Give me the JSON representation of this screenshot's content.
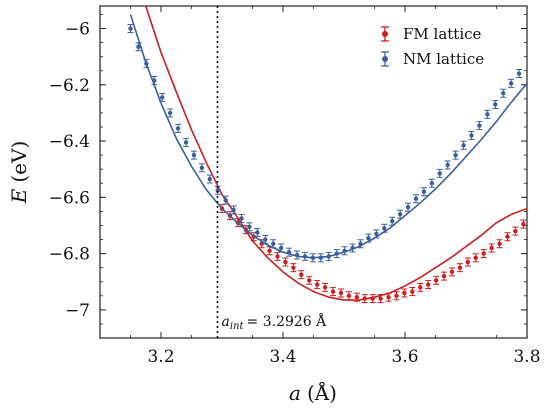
{
  "chart_data": {
    "type": "line",
    "xlabel_var": "a",
    "xlabel_unit": "(Å)",
    "ylabel_var": "E",
    "ylabel_unit": "(eV)",
    "xlim": [
      3.1,
      3.8
    ],
    "ylim": [
      -7.1,
      -5.92
    ],
    "x_ticks": [
      3.2,
      3.4,
      3.6,
      3.8
    ],
    "x_tick_labels": [
      "3.2",
      "3.4",
      "3.6",
      "3.8"
    ],
    "y_ticks": [
      -6.0,
      -6.2,
      -6.4,
      -6.6,
      -6.8,
      -7.0
    ],
    "y_tick_labels": [
      "−6",
      "−6.2",
      "−6.4",
      "−6.6",
      "−6.8",
      "−7"
    ],
    "grid": false,
    "legend_position": "top-right",
    "vline": {
      "x": 3.2926,
      "style": "dotted",
      "annotation_var": "a",
      "annotation_sub": "int",
      "annotation_value": "= 3.2926 Å"
    },
    "series": [
      {
        "name": "FM lattice",
        "color": "#cc1f1f",
        "fit_points": [
          [
            3.175,
            -5.92
          ],
          [
            3.2,
            -6.085
          ],
          [
            3.225,
            -6.225
          ],
          [
            3.25,
            -6.36
          ],
          [
            3.275,
            -6.48
          ],
          [
            3.3,
            -6.59
          ],
          [
            3.325,
            -6.67
          ],
          [
            3.35,
            -6.755
          ],
          [
            3.375,
            -6.815
          ],
          [
            3.4,
            -6.865
          ],
          [
            3.425,
            -6.905
          ],
          [
            3.45,
            -6.935
          ],
          [
            3.475,
            -6.955
          ],
          [
            3.5,
            -6.965
          ],
          [
            3.525,
            -6.965
          ],
          [
            3.55,
            -6.955
          ],
          [
            3.575,
            -6.94
          ],
          [
            3.6,
            -6.915
          ],
          [
            3.625,
            -6.885
          ],
          [
            3.65,
            -6.85
          ],
          [
            3.675,
            -6.815
          ],
          [
            3.7,
            -6.775
          ],
          [
            3.725,
            -6.735
          ],
          [
            3.75,
            -6.69
          ],
          [
            3.775,
            -6.66
          ],
          [
            3.8,
            -6.64
          ]
        ],
        "points": [
          [
            3.3,
            -6.64
          ],
          [
            3.313,
            -6.665
          ],
          [
            3.326,
            -6.69
          ],
          [
            3.339,
            -6.715
          ],
          [
            3.352,
            -6.74
          ],
          [
            3.365,
            -6.765
          ],
          [
            3.378,
            -6.79
          ],
          [
            3.391,
            -6.81
          ],
          [
            3.404,
            -6.83
          ],
          [
            3.417,
            -6.85
          ],
          [
            3.43,
            -6.875
          ],
          [
            3.443,
            -6.895
          ],
          [
            3.456,
            -6.91
          ],
          [
            3.469,
            -6.92
          ],
          [
            3.482,
            -6.935
          ],
          [
            3.495,
            -6.94
          ],
          [
            3.508,
            -6.95
          ],
          [
            3.521,
            -6.955
          ],
          [
            3.534,
            -6.96
          ],
          [
            3.547,
            -6.96
          ],
          [
            3.56,
            -6.96
          ],
          [
            3.573,
            -6.955
          ],
          [
            3.586,
            -6.95
          ],
          [
            3.599,
            -6.94
          ],
          [
            3.612,
            -6.935
          ],
          [
            3.625,
            -6.92
          ],
          [
            3.638,
            -6.91
          ],
          [
            3.651,
            -6.895
          ],
          [
            3.664,
            -6.88
          ],
          [
            3.677,
            -6.865
          ],
          [
            3.69,
            -6.85
          ],
          [
            3.703,
            -6.83
          ],
          [
            3.716,
            -6.815
          ],
          [
            3.729,
            -6.8
          ],
          [
            3.742,
            -6.78
          ],
          [
            3.755,
            -6.765
          ],
          [
            3.768,
            -6.74
          ],
          [
            3.781,
            -6.72
          ],
          [
            3.794,
            -6.695
          ]
        ]
      },
      {
        "name": "NM lattice",
        "color": "#3a5fa0",
        "fit_points": [
          [
            3.15,
            -5.95
          ],
          [
            3.175,
            -6.12
          ],
          [
            3.2,
            -6.265
          ],
          [
            3.225,
            -6.39
          ],
          [
            3.25,
            -6.49
          ],
          [
            3.275,
            -6.575
          ],
          [
            3.3,
            -6.64
          ],
          [
            3.325,
            -6.69
          ],
          [
            3.35,
            -6.735
          ],
          [
            3.375,
            -6.77
          ],
          [
            3.4,
            -6.795
          ],
          [
            3.425,
            -6.81
          ],
          [
            3.45,
            -6.815
          ],
          [
            3.475,
            -6.81
          ],
          [
            3.5,
            -6.795
          ],
          [
            3.525,
            -6.775
          ],
          [
            3.55,
            -6.745
          ],
          [
            3.575,
            -6.71
          ],
          [
            3.6,
            -6.665
          ],
          [
            3.625,
            -6.62
          ],
          [
            3.65,
            -6.57
          ],
          [
            3.675,
            -6.515
          ],
          [
            3.7,
            -6.455
          ],
          [
            3.725,
            -6.395
          ],
          [
            3.75,
            -6.33
          ],
          [
            3.775,
            -6.26
          ],
          [
            3.8,
            -6.195
          ]
        ],
        "points": [
          [
            3.15,
            -6.0
          ],
          [
            3.163,
            -6.065
          ],
          [
            3.176,
            -6.125
          ],
          [
            3.189,
            -6.185
          ],
          [
            3.202,
            -6.245
          ],
          [
            3.215,
            -6.3
          ],
          [
            3.228,
            -6.355
          ],
          [
            3.241,
            -6.405
          ],
          [
            3.254,
            -6.45
          ],
          [
            3.267,
            -6.495
          ],
          [
            3.28,
            -6.535
          ],
          [
            3.293,
            -6.575
          ],
          [
            3.306,
            -6.61
          ],
          [
            3.319,
            -6.645
          ],
          [
            3.332,
            -6.675
          ],
          [
            3.345,
            -6.705
          ],
          [
            3.358,
            -6.725
          ],
          [
            3.371,
            -6.75
          ],
          [
            3.384,
            -6.765
          ],
          [
            3.397,
            -6.78
          ],
          [
            3.41,
            -6.795
          ],
          [
            3.423,
            -6.805
          ],
          [
            3.436,
            -6.81
          ],
          [
            3.449,
            -6.815
          ],
          [
            3.462,
            -6.815
          ],
          [
            3.475,
            -6.81
          ],
          [
            3.488,
            -6.8
          ],
          [
            3.501,
            -6.79
          ],
          [
            3.514,
            -6.78
          ],
          [
            3.527,
            -6.765
          ],
          [
            3.54,
            -6.745
          ],
          [
            3.553,
            -6.73
          ],
          [
            3.566,
            -6.71
          ],
          [
            3.579,
            -6.685
          ],
          [
            3.592,
            -6.66
          ],
          [
            3.605,
            -6.635
          ],
          [
            3.618,
            -6.605
          ],
          [
            3.631,
            -6.58
          ],
          [
            3.644,
            -6.55
          ],
          [
            3.657,
            -6.515
          ],
          [
            3.67,
            -6.485
          ],
          [
            3.683,
            -6.45
          ],
          [
            3.696,
            -6.415
          ],
          [
            3.709,
            -6.38
          ],
          [
            3.722,
            -6.345
          ],
          [
            3.735,
            -6.305
          ],
          [
            3.748,
            -6.27
          ],
          [
            3.761,
            -6.23
          ],
          [
            3.774,
            -6.195
          ],
          [
            3.787,
            -6.16
          ]
        ]
      }
    ]
  }
}
